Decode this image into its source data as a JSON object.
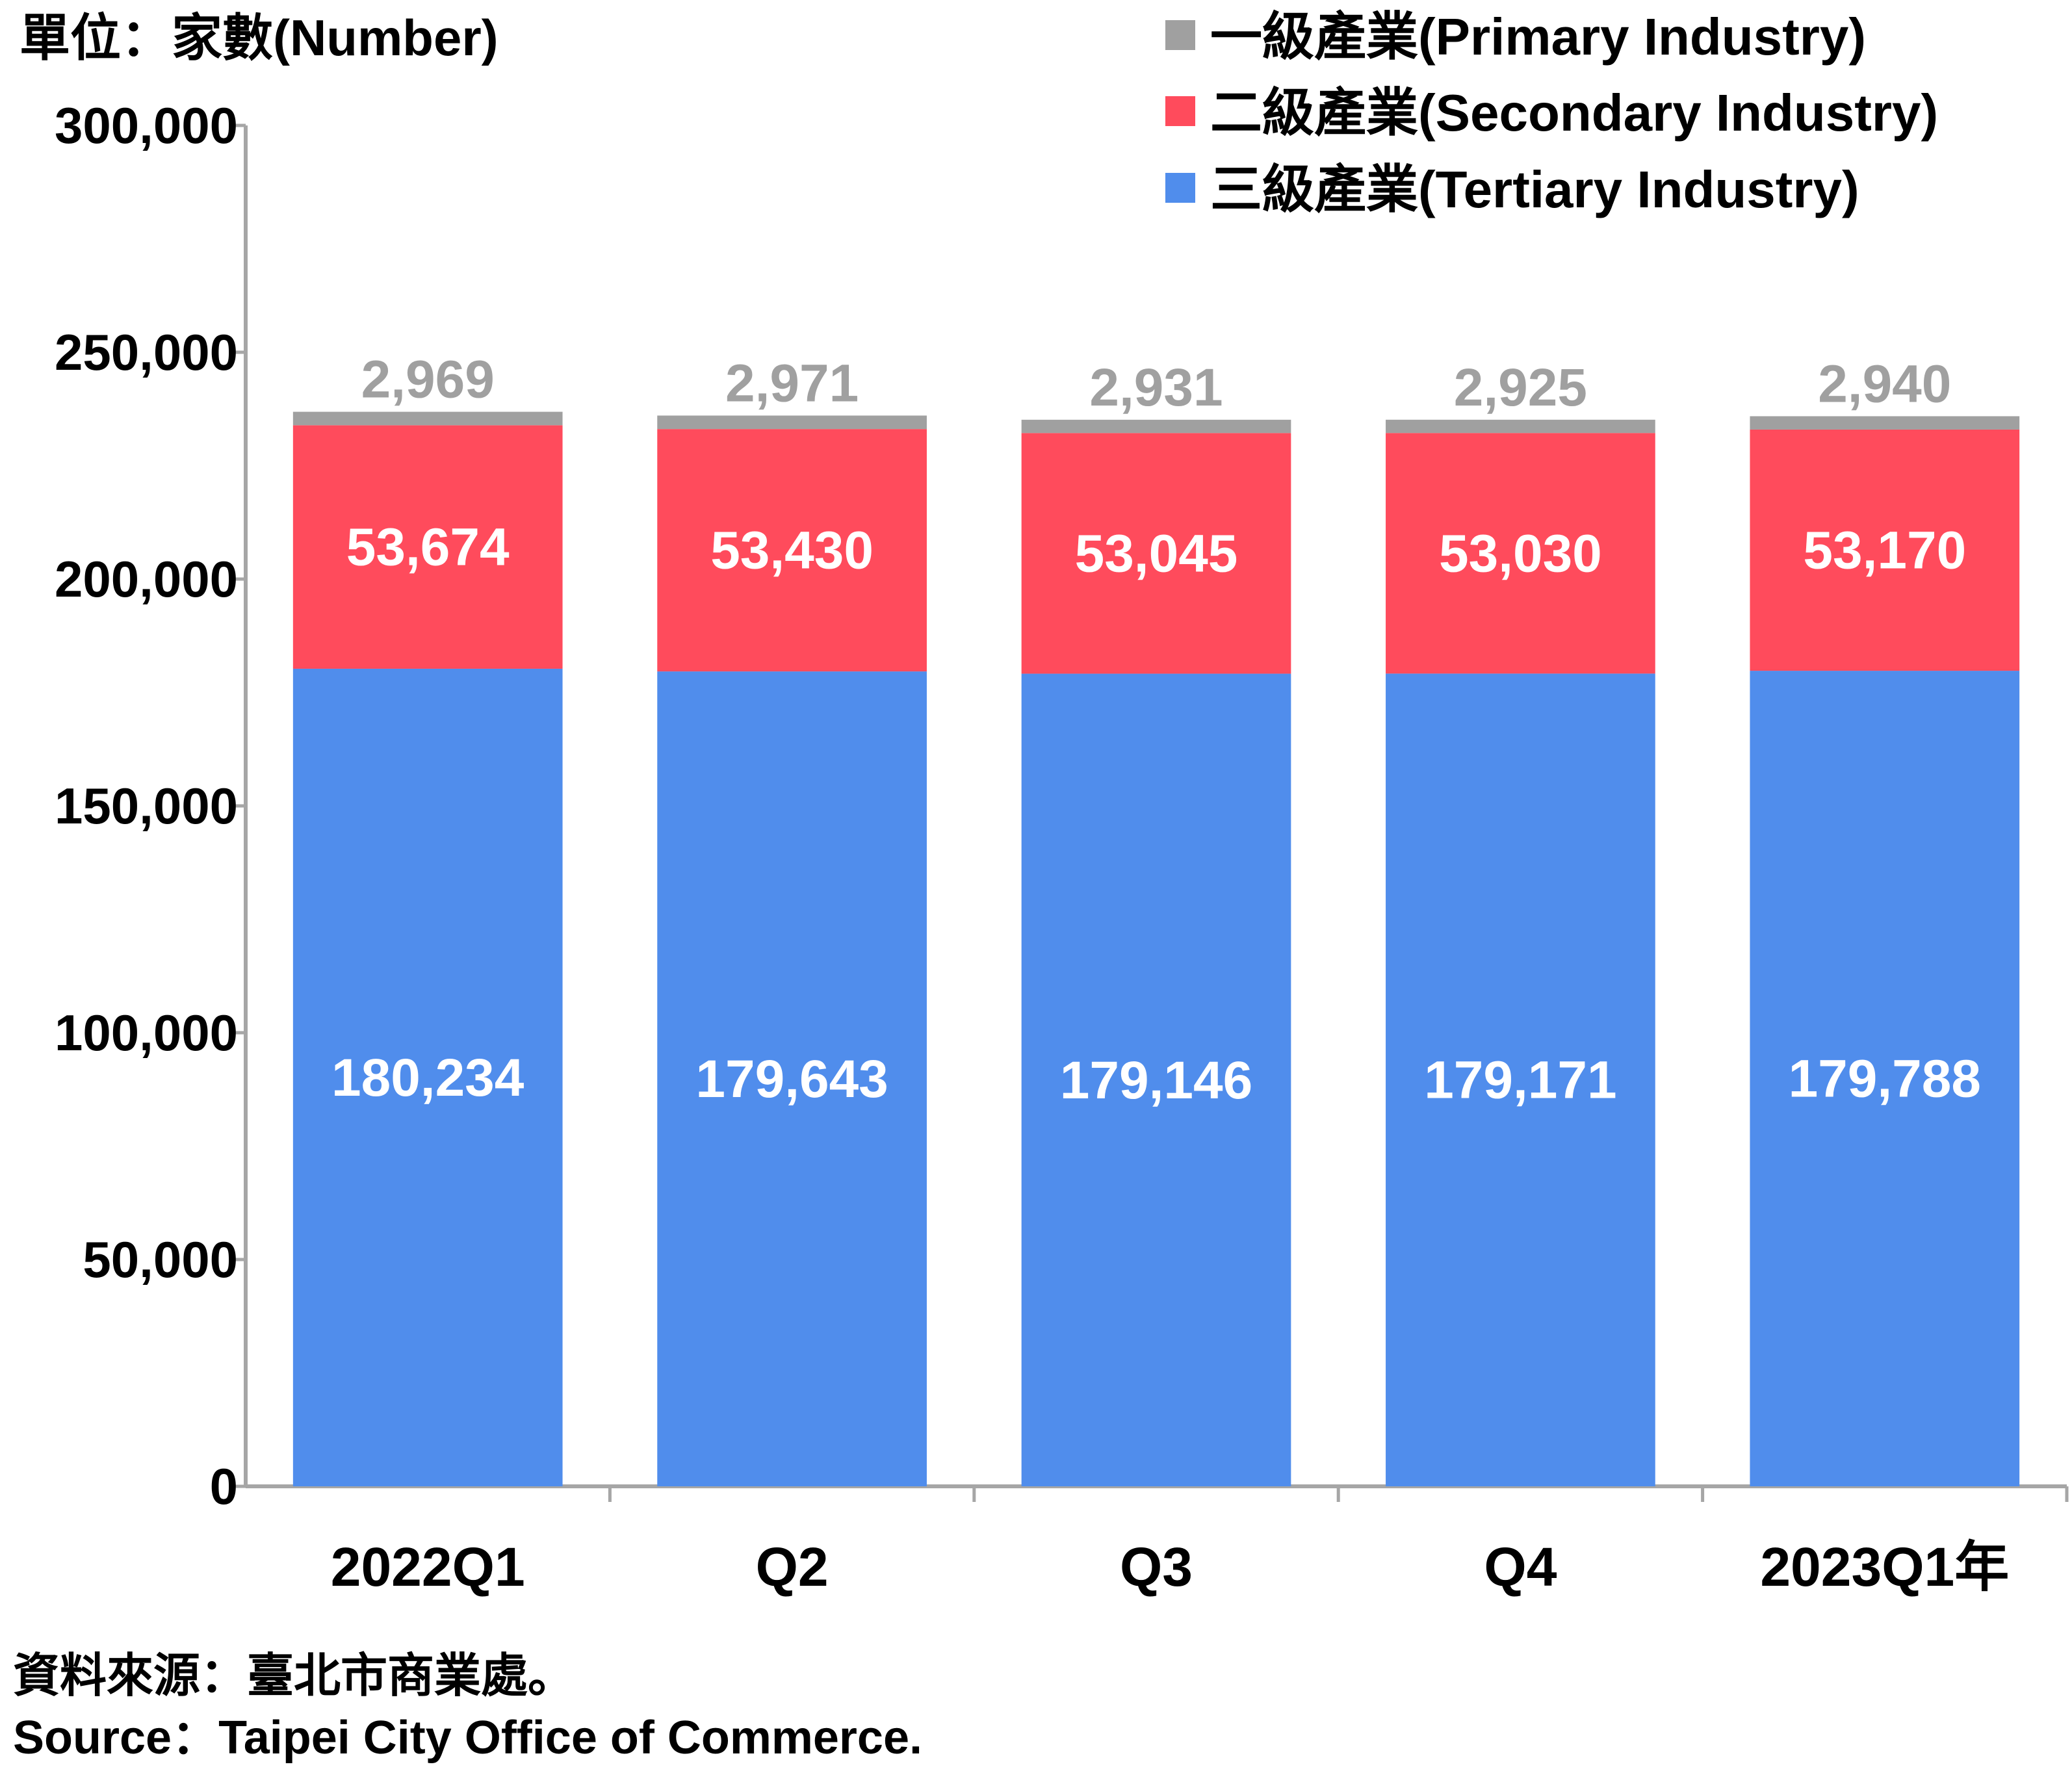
{
  "chart_data": {
    "type": "bar",
    "stacked": true,
    "unit_label": "單位：家數(Number)",
    "categories": [
      "2022Q1",
      "Q2",
      "Q3",
      "Q4",
      "2023Q1年"
    ],
    "series": [
      {
        "name": "三級產業(Tertiary Industry)",
        "color": "#508dec",
        "label_color": "#ffffff",
        "values": [
          180234,
          179643,
          179146,
          179171,
          179788
        ]
      },
      {
        "name": "二級產業(Secondary Industry)",
        "color": "#ff4b5c",
        "label_color": "#ffffff",
        "values": [
          53674,
          53430,
          53045,
          53030,
          53170
        ]
      },
      {
        "name": "一級產業(Primary Industry)",
        "color": "#a0a0a0",
        "label_color": "#a0a0a0",
        "values": [
          2969,
          2971,
          2931,
          2925,
          2940
        ]
      }
    ],
    "yticks": [
      "0",
      "50,000",
      "100,000",
      "150,000",
      "200,000",
      "250,000",
      "300,000"
    ],
    "ylim": [
      0,
      300000
    ],
    "grid": false,
    "legend_position": "top-right"
  },
  "source": {
    "zh": "資料來源：臺北市商業處。",
    "en": "Source：Taipei City Office of Commerce."
  }
}
